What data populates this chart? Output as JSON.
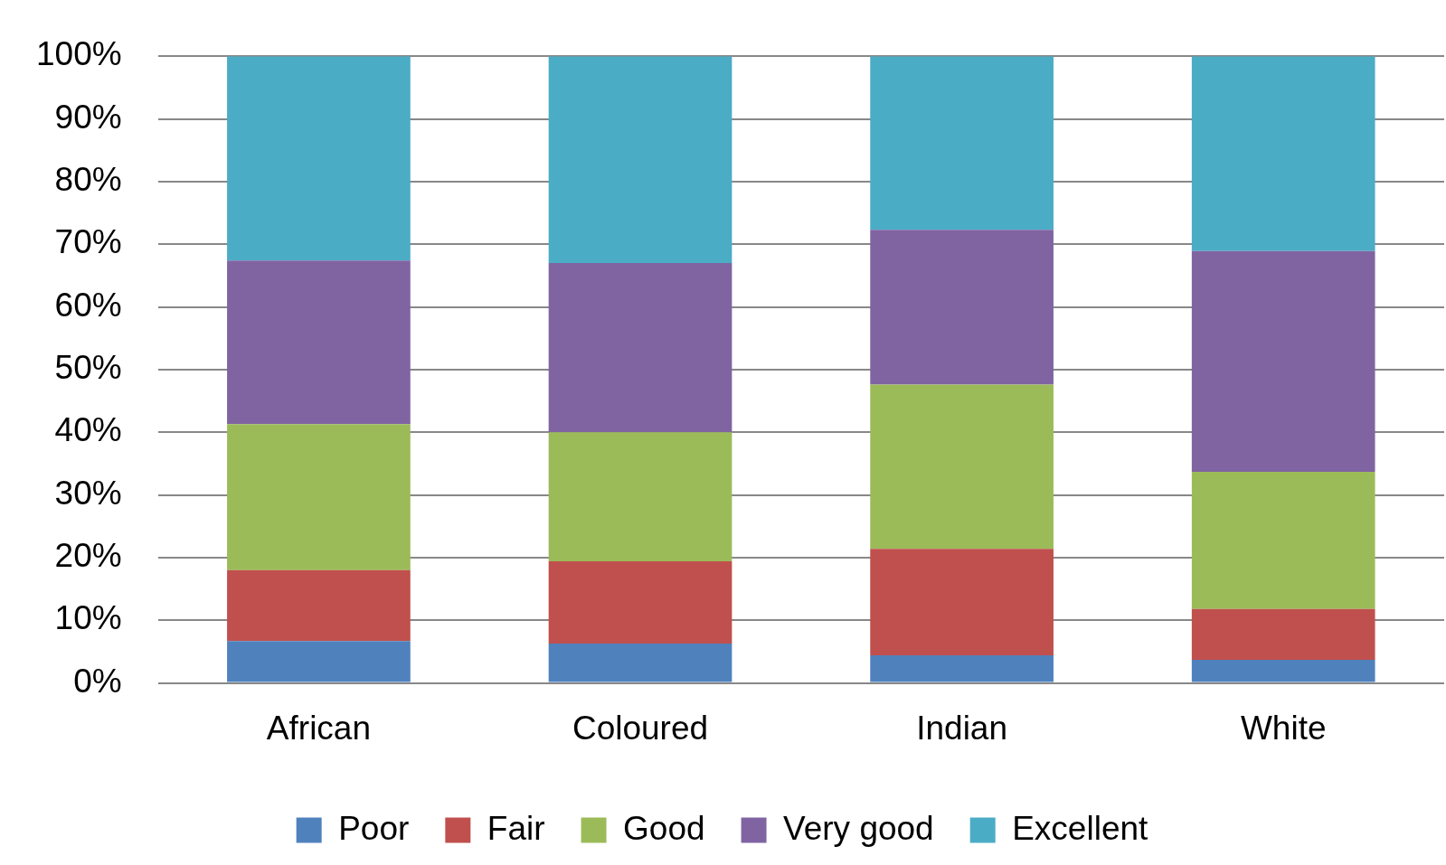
{
  "chart_data": {
    "type": "bar",
    "stacked": true,
    "categories": [
      "African",
      "Coloured",
      "Indian",
      "White"
    ],
    "series": [
      {
        "name": "Poor",
        "color": "#4f81bd",
        "values": [
          6.7,
          6.3,
          4.4,
          3.7
        ]
      },
      {
        "name": "Fair",
        "color": "#c0504d",
        "values": [
          11.3,
          13.1,
          17.0,
          8.1
        ]
      },
      {
        "name": "Good",
        "color": "#9bbb59",
        "values": [
          23.3,
          20.6,
          26.2,
          21.9
        ]
      },
      {
        "name": "Very good",
        "color": "#8064a2",
        "values": [
          26.1,
          27.0,
          24.7,
          35.2
        ]
      },
      {
        "name": "Excellent",
        "color": "#4bacc6",
        "values": [
          32.6,
          33.0,
          27.7,
          31.1
        ]
      }
    ],
    "ylim": [
      0,
      100
    ],
    "yticks": [
      {
        "value": 0,
        "label": "0%"
      },
      {
        "value": 10,
        "label": "10%"
      },
      {
        "value": 20,
        "label": "20%"
      },
      {
        "value": 30,
        "label": "30%"
      },
      {
        "value": 40,
        "label": "40%"
      },
      {
        "value": 50,
        "label": "50%"
      },
      {
        "value": 60,
        "label": "60%"
      },
      {
        "value": 70,
        "label": "70%"
      },
      {
        "value": 80,
        "label": "80%"
      },
      {
        "value": 90,
        "label": "90%"
      },
      {
        "value": 100,
        "label": "100%"
      }
    ],
    "grid": "y",
    "legend": "bottom"
  }
}
